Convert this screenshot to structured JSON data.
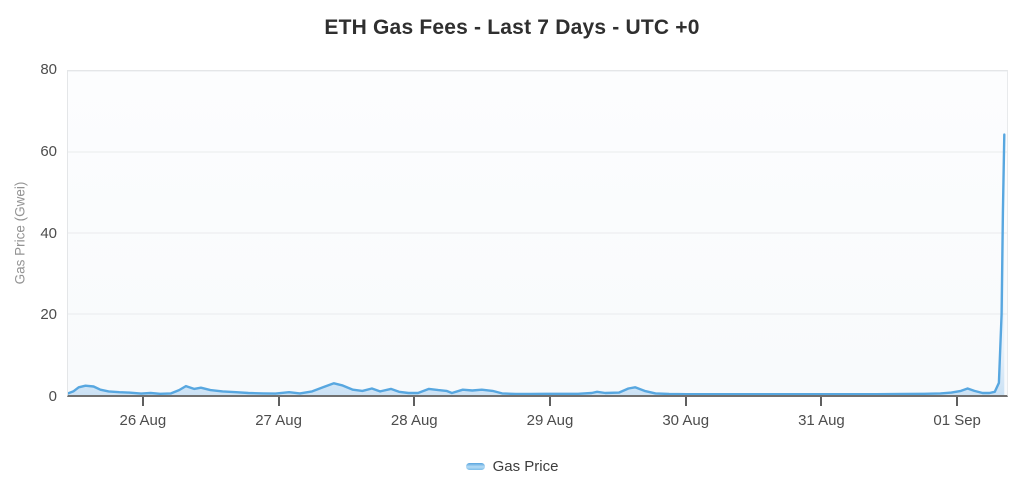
{
  "header": {
    "title": "ETH Gas Fees - Last 7 Days - UTC +0"
  },
  "chart_data": {
    "type": "line",
    "title": "ETH Gas Fees - Last 7 Days - UTC +0",
    "xlabel": "",
    "ylabel": "Gas Price (Gwei)",
    "x_unit": "days since 26 Aug 00:00 UTC",
    "xlim": [
      -0.559,
      6.36
    ],
    "ylim": [
      0,
      80
    ],
    "y_ticks": [
      0,
      20,
      40,
      60,
      80
    ],
    "x_ticks": [
      {
        "pos": 0,
        "label": "26 Aug"
      },
      {
        "pos": 1,
        "label": "27 Aug"
      },
      {
        "pos": 2,
        "label": "28 Aug"
      },
      {
        "pos": 3,
        "label": "29 Aug"
      },
      {
        "pos": 4,
        "label": "30 Aug"
      },
      {
        "pos": 5,
        "label": "31 Aug"
      },
      {
        "pos": 6,
        "label": "01 Sep"
      }
    ],
    "grid": "horizontal-only",
    "legend_position": "bottom-center",
    "series": [
      {
        "name": "Gas Price",
        "color": "#58a7e0",
        "area_fill": "light-blue-gradient",
        "points": [
          [
            -0.56,
            0.4
          ],
          [
            -0.52,
            0.9
          ],
          [
            -0.48,
            1.9
          ],
          [
            -0.43,
            2.3
          ],
          [
            -0.37,
            2.1
          ],
          [
            -0.32,
            1.3
          ],
          [
            -0.26,
            0.9
          ],
          [
            -0.18,
            0.7
          ],
          [
            -0.11,
            0.6
          ],
          [
            -0.02,
            0.35
          ],
          [
            0.05,
            0.5
          ],
          [
            0.12,
            0.3
          ],
          [
            0.2,
            0.4
          ],
          [
            0.26,
            1.2
          ],
          [
            0.31,
            2.2
          ],
          [
            0.37,
            1.5
          ],
          [
            0.42,
            1.8
          ],
          [
            0.49,
            1.2
          ],
          [
            0.58,
            0.9
          ],
          [
            0.68,
            0.7
          ],
          [
            0.77,
            0.5
          ],
          [
            0.88,
            0.4
          ],
          [
            0.97,
            0.35
          ],
          [
            1.07,
            0.7
          ],
          [
            1.15,
            0.4
          ],
          [
            1.24,
            0.9
          ],
          [
            1.32,
            1.9
          ],
          [
            1.4,
            2.9
          ],
          [
            1.46,
            2.4
          ],
          [
            1.54,
            1.3
          ],
          [
            1.61,
            1.0
          ],
          [
            1.68,
            1.6
          ],
          [
            1.74,
            0.9
          ],
          [
            1.82,
            1.5
          ],
          [
            1.88,
            0.8
          ],
          [
            1.95,
            0.5
          ],
          [
            2.02,
            0.5
          ],
          [
            2.1,
            1.5
          ],
          [
            2.17,
            1.2
          ],
          [
            2.23,
            1.0
          ],
          [
            2.27,
            0.5
          ],
          [
            2.35,
            1.3
          ],
          [
            2.42,
            1.1
          ],
          [
            2.49,
            1.3
          ],
          [
            2.57,
            1.0
          ],
          [
            2.64,
            0.4
          ],
          [
            2.74,
            0.25
          ],
          [
            2.85,
            0.25
          ],
          [
            2.96,
            0.3
          ],
          [
            3.05,
            0.3
          ],
          [
            3.2,
            0.3
          ],
          [
            3.3,
            0.5
          ],
          [
            3.34,
            0.8
          ],
          [
            3.4,
            0.5
          ],
          [
            3.5,
            0.6
          ],
          [
            3.57,
            1.6
          ],
          [
            3.62,
            1.9
          ],
          [
            3.69,
            1.0
          ],
          [
            3.77,
            0.4
          ],
          [
            3.87,
            0.25
          ],
          [
            4.0,
            0.2
          ],
          [
            4.2,
            0.2
          ],
          [
            4.4,
            0.2
          ],
          [
            4.6,
            0.2
          ],
          [
            4.8,
            0.2
          ],
          [
            5.0,
            0.2
          ],
          [
            5.2,
            0.2
          ],
          [
            5.4,
            0.2
          ],
          [
            5.6,
            0.25
          ],
          [
            5.75,
            0.3
          ],
          [
            5.87,
            0.4
          ],
          [
            5.95,
            0.6
          ],
          [
            6.02,
            1.0
          ],
          [
            6.07,
            1.6
          ],
          [
            6.12,
            1.0
          ],
          [
            6.18,
            0.5
          ],
          [
            6.23,
            0.5
          ],
          [
            6.27,
            0.8
          ],
          [
            6.3,
            3.0
          ],
          [
            6.32,
            20.0
          ],
          [
            6.33,
            45.0
          ],
          [
            6.34,
            64.3
          ]
        ]
      }
    ]
  },
  "legend": {
    "items": [
      {
        "label": "Gas Price",
        "color": "#58a7e0"
      }
    ]
  },
  "colors": {
    "line": "#58a7e0",
    "grid": "#e9ebed",
    "axis": "#707070",
    "tick_text": "#4d4d4d",
    "axis_title_text": "#939393",
    "title_text": "#2f2f2f",
    "plot_bg": "#f9fbfc",
    "page_bg": "#ffffff"
  }
}
